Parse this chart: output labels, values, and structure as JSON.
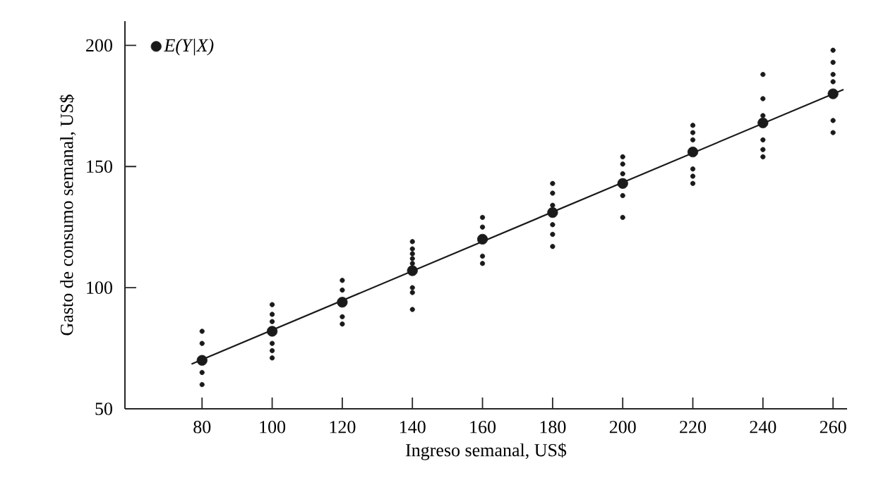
{
  "chart_data": {
    "type": "scatter",
    "xlabel": "Ingreso semanal, US$",
    "ylabel": "Gasto de consumo semanal, US$",
    "xlim": [
      58,
      264
    ],
    "ylim": [
      50,
      210
    ],
    "xticks": [
      80,
      100,
      120,
      140,
      160,
      180,
      200,
      220,
      240,
      260
    ],
    "yticks": [
      50,
      100,
      150,
      200
    ],
    "legend": "top left",
    "series": [
      {
        "marker": "circle",
        "color": "#1a1a1a",
        "x": [
          80,
          80,
          80,
          80,
          100,
          100,
          100,
          100,
          100,
          100,
          120,
          120,
          120,
          120,
          140,
          140,
          140,
          140,
          140,
          140,
          140,
          140,
          160,
          160,
          160,
          160,
          180,
          180,
          180,
          180,
          180,
          180,
          200,
          200,
          200,
          200,
          200,
          220,
          220,
          220,
          220,
          220,
          220,
          240,
          240,
          240,
          240,
          240,
          240,
          260,
          260,
          260,
          260,
          260,
          260
        ],
        "values": [
          82,
          77,
          65,
          60,
          93,
          89,
          86,
          77,
          74,
          71,
          103,
          99,
          88,
          85,
          119,
          116,
          114,
          112,
          110,
          100,
          98,
          91,
          129,
          125,
          113,
          110,
          143,
          139,
          134,
          126,
          122,
          117,
          154,
          151,
          147,
          138,
          129,
          167,
          164,
          161,
          149,
          146,
          143,
          188,
          178,
          171,
          161,
          157,
          154,
          198,
          193,
          188,
          185,
          169,
          164
        ]
      },
      {
        "name": "E(Y|X)",
        "marker": "circle",
        "color": "#1a1a1a",
        "x": [
          80,
          100,
          120,
          140,
          160,
          180,
          200,
          220,
          240,
          260
        ],
        "values": [
          70,
          82,
          94,
          107,
          120,
          131,
          143,
          156,
          168,
          180
        ]
      },
      {
        "type": "line",
        "marker": "none",
        "color": "#1a1a1a",
        "x": [
          77,
          263
        ],
        "values": [
          68.5,
          181.8
        ]
      }
    ]
  }
}
